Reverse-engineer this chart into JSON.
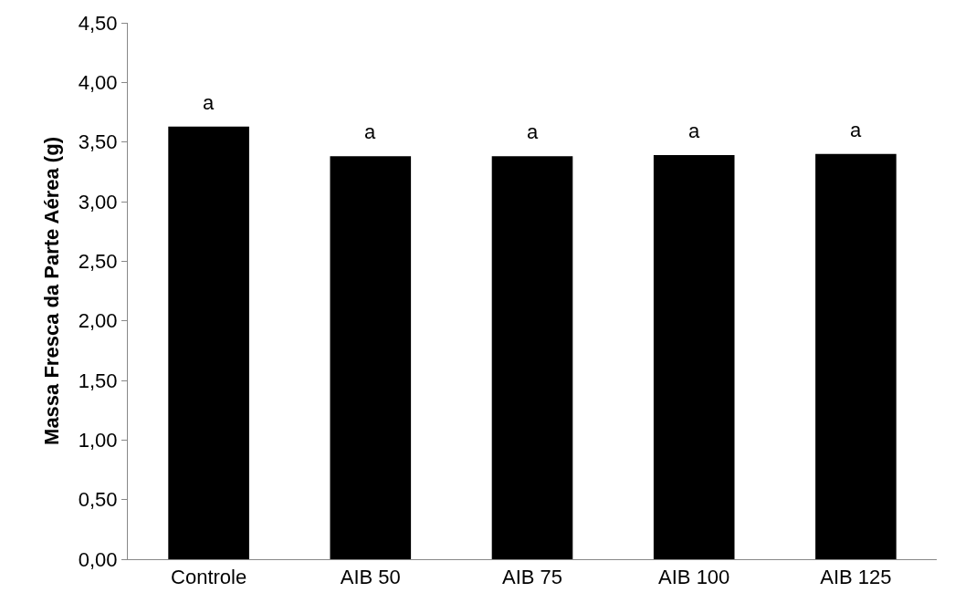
{
  "chart_data": {
    "type": "bar",
    "ylabel": "Massa Fresca da Parte Aérea (g)",
    "categories": [
      "Controle",
      "AIB 50",
      "AIB 75",
      "AIB 100",
      "AIB 125"
    ],
    "values": [
      3.63,
      3.38,
      3.38,
      3.39,
      3.4
    ],
    "color": "#000000",
    "ylim": [
      0,
      4.5
    ],
    "yticks": [
      {
        "value": 0,
        "label": "0,00"
      },
      {
        "value": 0.5,
        "label": "0,50"
      },
      {
        "value": 1,
        "label": "1,00"
      },
      {
        "value": 1.5,
        "label": "1,50"
      },
      {
        "value": 2,
        "label": "2,00"
      },
      {
        "value": 2.5,
        "label": "2,50"
      },
      {
        "value": 3,
        "label": "3,00"
      },
      {
        "value": 3.5,
        "label": "3,50"
      },
      {
        "value": 4,
        "label": "4,00"
      },
      {
        "value": 4.5,
        "label": "4,50"
      }
    ],
    "legend": false,
    "annotations": [
      {
        "text": "a",
        "x": "Controle",
        "y": 3.63
      },
      {
        "text": "a",
        "x": "AIB 50",
        "y": 3.38
      },
      {
        "text": "a",
        "x": "AIB 75",
        "y": 3.38
      },
      {
        "text": "a",
        "x": "AIB 100",
        "y": 3.39
      },
      {
        "text": "a",
        "x": "AIB 125",
        "y": 3.4
      }
    ]
  }
}
